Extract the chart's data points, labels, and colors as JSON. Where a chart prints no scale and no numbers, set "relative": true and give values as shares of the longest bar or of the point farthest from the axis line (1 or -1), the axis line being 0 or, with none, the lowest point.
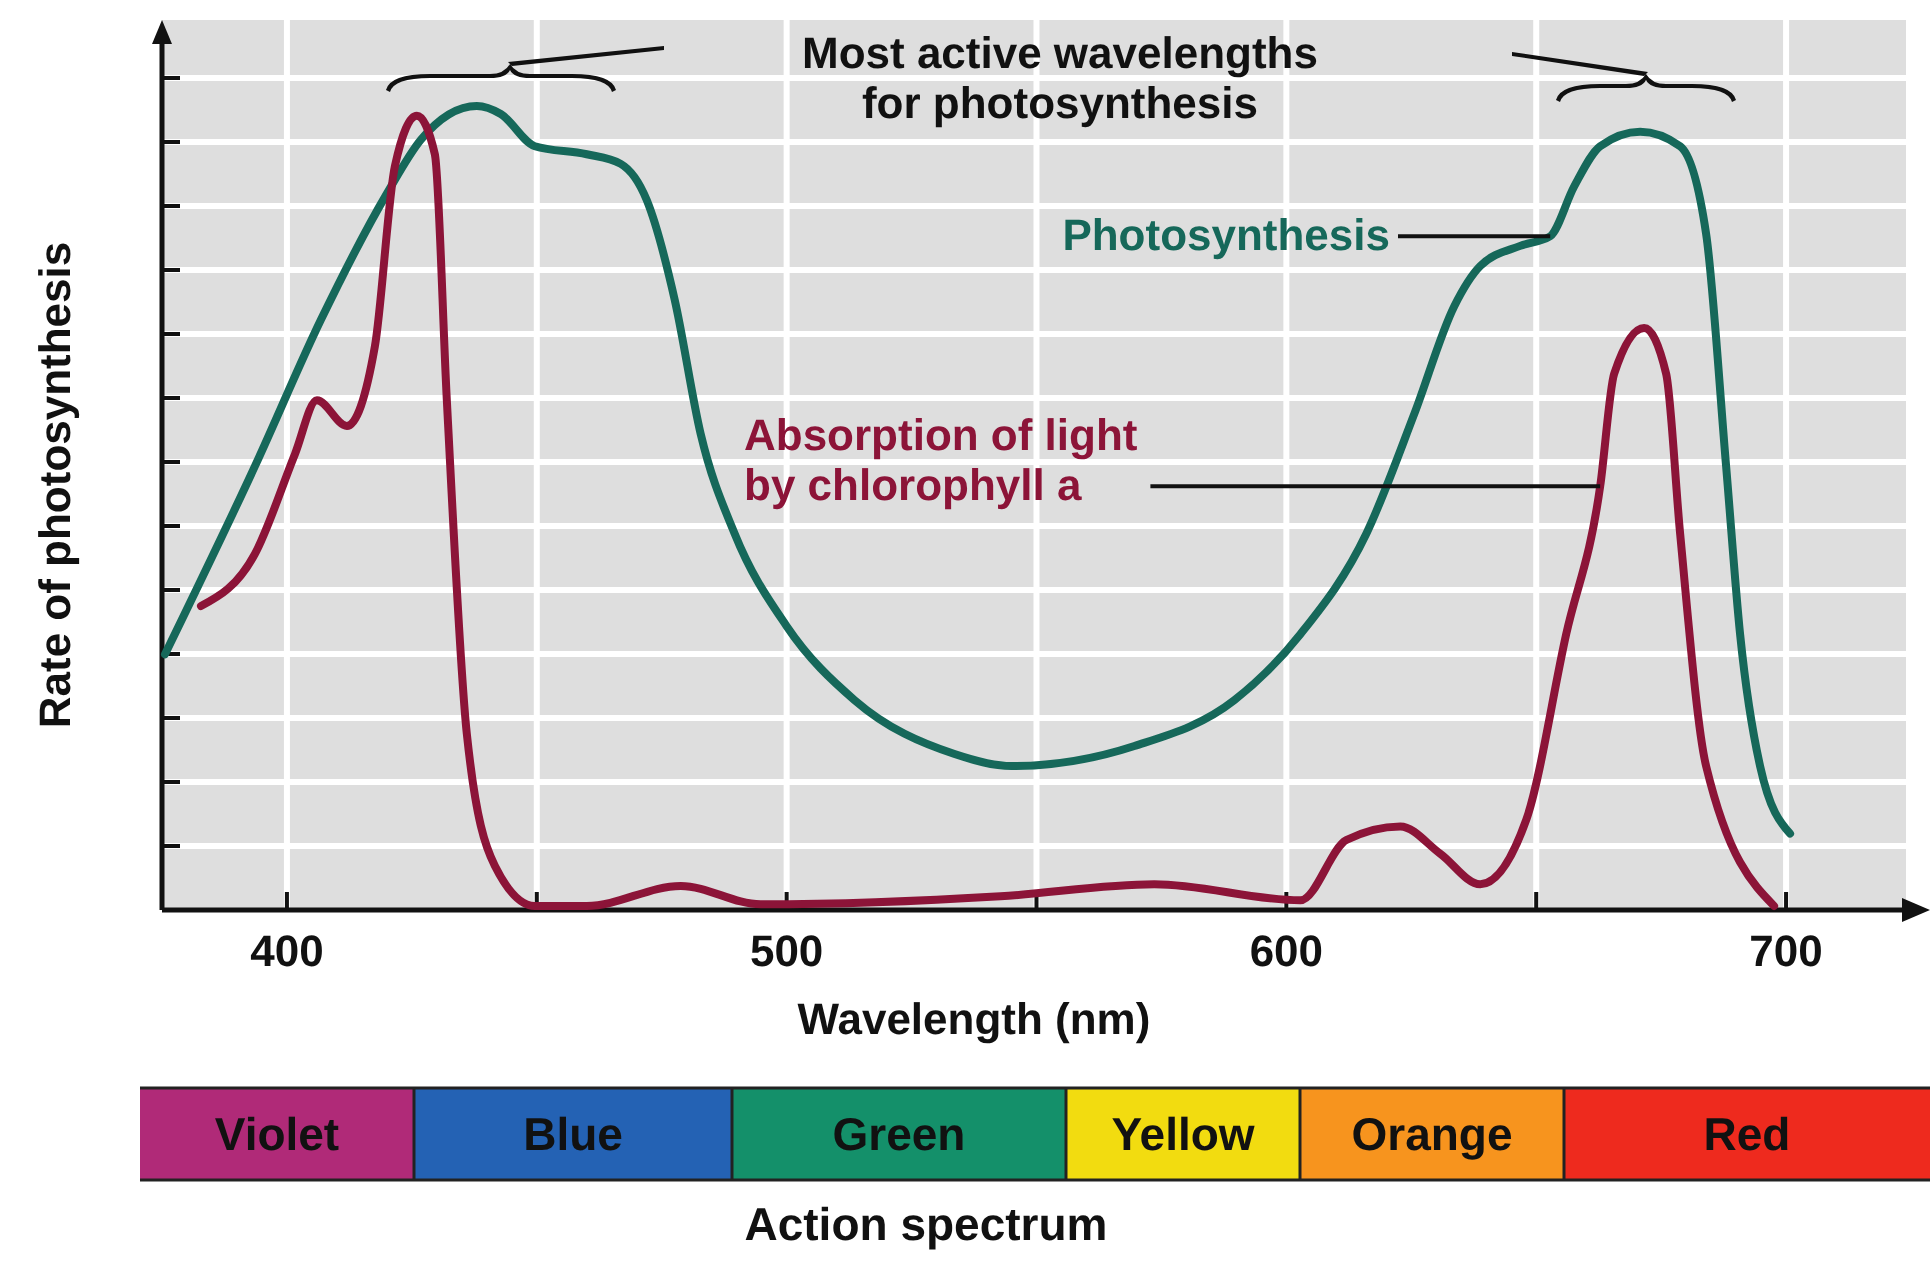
{
  "chart_data": [
    {
      "type": "line",
      "xlabel": "Wavelength (nm)",
      "ylabel": "Rate of photosynthesis",
      "relative": true,
      "grid": true,
      "legend": false,
      "marker": "none",
      "line_style": "solid",
      "xlim": [
        375,
        724
      ],
      "xticks": [
        400,
        {
          "value": 450,
          "label": null
        },
        500,
        {
          "value": 550,
          "label": null
        },
        600,
        {
          "value": 650,
          "label": null
        },
        700
      ],
      "annotations": [
        "Most active wavelengths for photosynthesis"
      ],
      "series": [
        {
          "name": "Photosynthesis",
          "color": "#16685a",
          "x": [
            375.6,
            393.6,
            406.8,
            420,
            426.8,
            438,
            442.8,
            449.6,
            460,
            466.8,
            472,
            477.6,
            482.8,
            489.6,
            500,
            513.6,
            533.6,
            545,
            569.6,
            589.6,
            602.8,
            616,
            625.6,
            633.6,
            638.8,
            646.8,
            652.8,
            657.6,
            662.8,
            670.8,
            678.8,
            684,
            688,
            690.8,
            694.8,
            700.8
          ],
          "values": [
            0.318,
            0.552,
            0.734,
            0.891,
            0.958,
            1,
            0.99,
            0.95,
            0.94,
            0.928,
            0.883,
            0.759,
            0.592,
            0.468,
            0.353,
            0.261,
            0.194,
            0.179,
            0.204,
            0.261,
            0.343,
            0.468,
            0.617,
            0.751,
            0.801,
            0.826,
            0.838,
            0.9,
            0.95,
            0.968,
            0.95,
            0.841,
            0.552,
            0.343,
            0.179,
            0.095
          ]
        },
        {
          "name": "Absorption of light by chlorophyll a",
          "color": "#8c1438",
          "x": [
            382.8,
            393.6,
            401.6,
            406,
            412,
            417.6,
            421.6,
            426,
            429.6,
            432,
            436,
            441.6,
            449.6,
            460,
            478.8,
            494.8,
            542.8,
            573.6,
            602.8,
            612,
            622.8,
            630.8,
            638.8,
            648,
            656,
            662.8,
            665.6,
            671.6,
            676,
            678.8,
            684,
            697.6
          ],
          "values": [
            0.378,
            0.443,
            0.567,
            0.634,
            0.602,
            0.701,
            0.925,
            0.988,
            0.94,
            0.634,
            0.219,
            0.055,
            0.005,
            0.005,
            0.03,
            0.007,
            0.017,
            0.032,
            0.012,
            0.087,
            0.104,
            0.07,
            0.032,
            0.112,
            0.343,
            0.527,
            0.667,
            0.724,
            0.667,
            0.468,
            0.179,
            0.005
          ]
        }
      ]
    },
    {
      "type": "other",
      "title": "Action spectrum",
      "categories": [
        "Violet",
        "Blue",
        "Green",
        "Yellow",
        "Orange",
        "Red"
      ],
      "colors": [
        "#b02a78",
        "#2462b4",
        "#14906a",
        "#f2dc10",
        "#f7941e",
        "#ee2a1e"
      ]
    }
  ]
}
